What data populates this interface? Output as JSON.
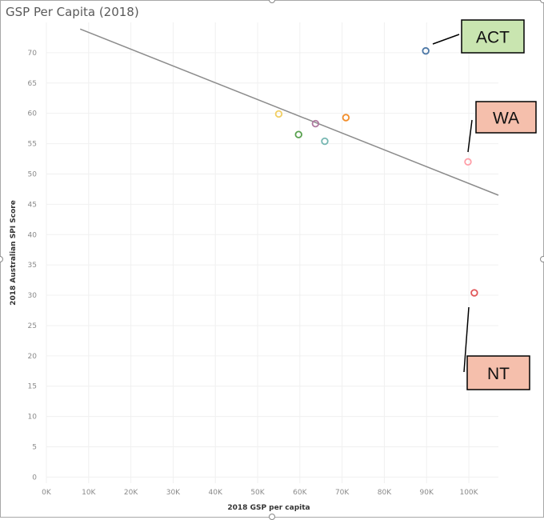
{
  "chart_data": {
    "type": "scatter",
    "title": "GSP Per Capita (2018)",
    "xlabel": "2018 GSP per capita",
    "ylabel": "2018 Australian SPI Score",
    "xlim": [
      0,
      107000
    ],
    "ylim": [
      -1,
      75
    ],
    "x_ticks": [
      {
        "value": 0,
        "label": "0K"
      },
      {
        "value": 10000,
        "label": "10K"
      },
      {
        "value": 20000,
        "label": "20K"
      },
      {
        "value": 30000,
        "label": "30K"
      },
      {
        "value": 40000,
        "label": "40K"
      },
      {
        "value": 50000,
        "label": "50K"
      },
      {
        "value": 60000,
        "label": "60K"
      },
      {
        "value": 70000,
        "label": "70K"
      },
      {
        "value": 80000,
        "label": "80K"
      },
      {
        "value": 90000,
        "label": "90K"
      },
      {
        "value": 100000,
        "label": "100K"
      }
    ],
    "y_ticks": [
      {
        "value": 0,
        "label": "0"
      },
      {
        "value": 5,
        "label": "5"
      },
      {
        "value": 10,
        "label": "10"
      },
      {
        "value": 15,
        "label": "15"
      },
      {
        "value": 20,
        "label": "20"
      },
      {
        "value": 25,
        "label": "25"
      },
      {
        "value": 30,
        "label": "30"
      },
      {
        "value": 35,
        "label": "35"
      },
      {
        "value": 40,
        "label": "40"
      },
      {
        "value": 45,
        "label": "45"
      },
      {
        "value": 50,
        "label": "50"
      },
      {
        "value": 55,
        "label": "55"
      },
      {
        "value": 60,
        "label": "60"
      },
      {
        "value": 65,
        "label": "65"
      },
      {
        "value": 70,
        "label": "70"
      }
    ],
    "grid": true,
    "points": [
      {
        "x": 89800,
        "y": 70.3,
        "color": "#4e79a7"
      },
      {
        "x": 99800,
        "y": 52.0,
        "color": "#ff9da7"
      },
      {
        "x": 101300,
        "y": 30.4,
        "color": "#e15759"
      },
      {
        "x": 55000,
        "y": 59.9,
        "color": "#f1ce63"
      },
      {
        "x": 59700,
        "y": 56.5,
        "color": "#59a14f"
      },
      {
        "x": 63700,
        "y": 58.3,
        "color": "#b07aa1"
      },
      {
        "x": 65900,
        "y": 55.4,
        "color": "#76b7b2"
      },
      {
        "x": 70900,
        "y": 59.3,
        "color": "#f28e2b"
      }
    ],
    "trend_line": {
      "x": [
        8000,
        107000
      ],
      "y": [
        73.9,
        46.5
      ],
      "color": "#8c8c8c"
    },
    "annotations": [
      {
        "label": "ACT",
        "x": 89800,
        "y": 70.3,
        "fill": "#c9e5b0"
      },
      {
        "label": "WA",
        "x": 99800,
        "y": 52.0,
        "fill": "#f5bfac"
      },
      {
        "label": "NT",
        "x": 101300,
        "y": 30.4,
        "fill": "#f5bfac"
      }
    ]
  }
}
